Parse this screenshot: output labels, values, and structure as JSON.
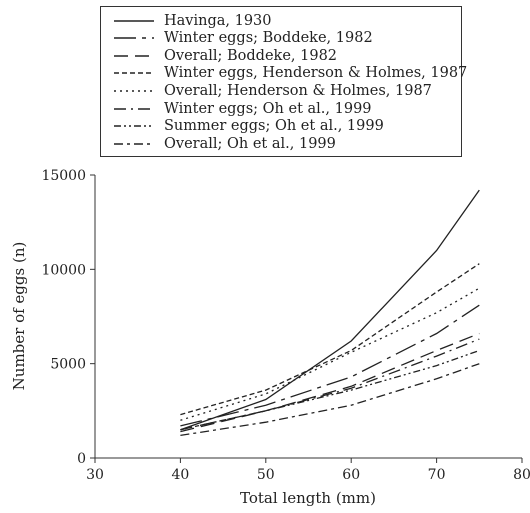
{
  "chart_data": {
    "type": "line",
    "title": "",
    "xlabel": "Total length (mm)",
    "ylabel": "Number of eggs (n)",
    "xlim": [
      30,
      80
    ],
    "ylim": [
      0,
      15000
    ],
    "x_ticks": [
      "30",
      "40",
      "50",
      "60",
      "70",
      "80"
    ],
    "y_ticks": [
      "0",
      "5000",
      "10000",
      "15000"
    ],
    "grid": false,
    "legend_position": "top",
    "x": [
      40,
      50,
      60,
      70,
      75
    ],
    "series": [
      {
        "name": "Havinga, 1930",
        "dash": "solid",
        "values": [
          1500,
          3100,
          6200,
          11000,
          14200
        ]
      },
      {
        "name": "Winter eggs; Boddeke, 1982",
        "dash": "long-dash-dot",
        "values": [
          1700,
          2800,
          4300,
          6600,
          8100
        ]
      },
      {
        "name": "Overall; Boddeke, 1982",
        "dash": "long-dash",
        "values": [
          1400,
          2500,
          3800,
          5700,
          6600
        ]
      },
      {
        "name": "Winter eggs, Henderson & Holmes, 1987",
        "dash": "dash",
        "values": [
          2300,
          3600,
          5700,
          8800,
          10300
        ]
      },
      {
        "name": "Overall; Henderson & Holmes, 1987",
        "dash": "dot",
        "values": [
          2000,
          3400,
          5600,
          7700,
          9000
        ]
      },
      {
        "name": "Winter eggs; Oh et al., 1999",
        "dash": "dash-dot",
        "values": [
          1500,
          2500,
          3700,
          5400,
          6300
        ]
      },
      {
        "name": "Summer eggs; Oh et al., 1999",
        "dash": "dash-dot-dot",
        "values": [
          1500,
          2500,
          3600,
          4900,
          5700
        ]
      },
      {
        "name": "Overall; Oh et al., 1999",
        "dash": "dot-dash",
        "values": [
          1200,
          1900,
          2800,
          4200,
          5000
        ]
      }
    ]
  }
}
